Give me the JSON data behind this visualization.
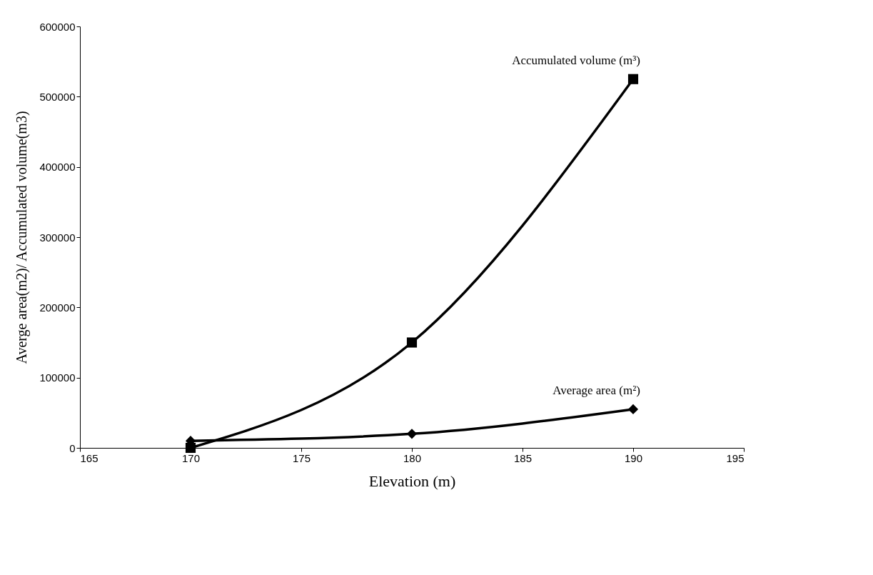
{
  "chart_data": {
    "type": "line",
    "xlabel": "Elevation (m)",
    "ylabel": "Averge area(m2)/ Accumulated volume(m3)",
    "x": [
      170,
      180,
      190
    ],
    "series": [
      {
        "color": "#000000",
        "marker": "square",
        "values": [
          0,
          150000,
          525000
        ]
      },
      {
        "color": "#000000",
        "marker": "diamond",
        "values": [
          10000,
          20000,
          55000
        ]
      }
    ],
    "xlim": [
      165,
      195
    ],
    "xticks": [
      165,
      170,
      175,
      180,
      185,
      190,
      195
    ],
    "ylim": [
      0,
      600000
    ],
    "yticks": [
      0,
      100000,
      200000,
      300000,
      400000,
      500000,
      600000
    ],
    "annotations": [
      {
        "text": "Accumulated volume (m³)",
        "x": 190,
        "y": 525000
      },
      {
        "text": "Average area (m²)",
        "x": 190,
        "y": 55000
      }
    ],
    "grid": false
  }
}
